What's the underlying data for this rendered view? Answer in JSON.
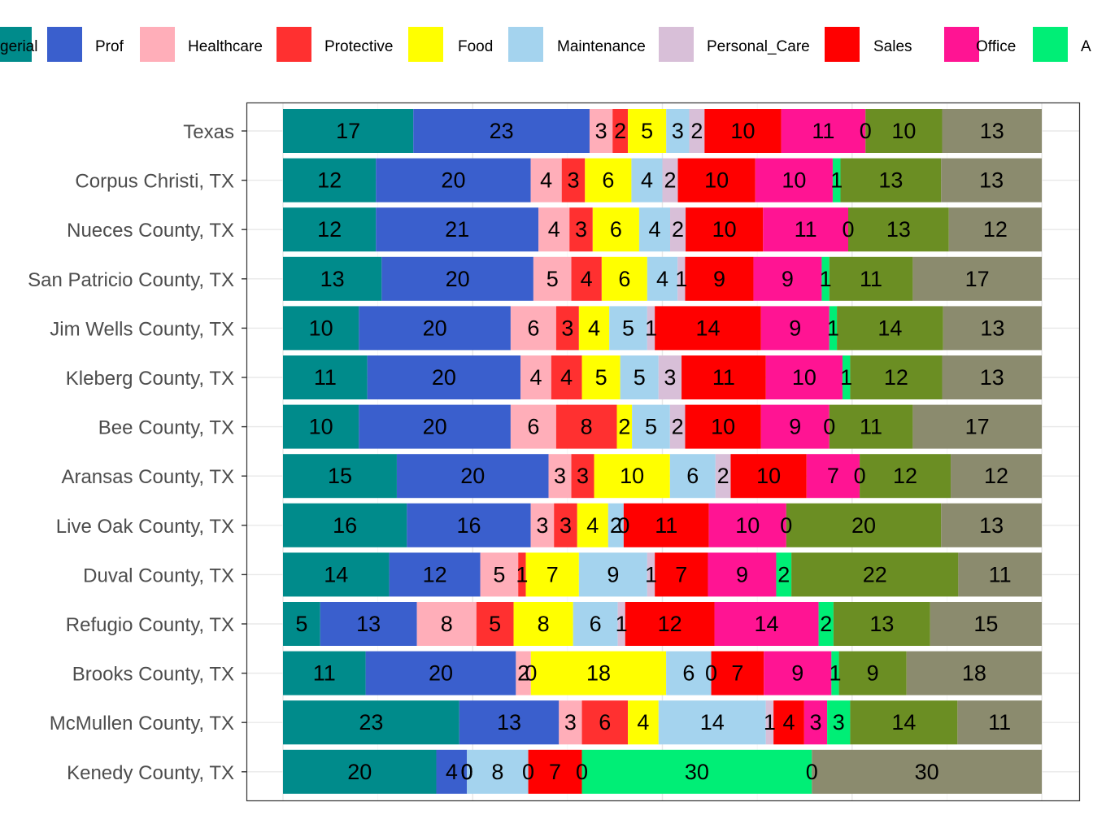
{
  "chart_data": {
    "type": "bar",
    "orientation": "horizontal",
    "stacked": true,
    "title": "",
    "xlabel": "",
    "ylabel": "",
    "grid": true,
    "legend_position": "top",
    "xlim": [
      0,
      100
    ],
    "categories": [
      "Texas",
      "Corpus Christi, TX",
      "Nueces County, TX",
      "San Patricio County, TX",
      "Jim Wells County, TX",
      "Kleberg County, TX",
      "Bee County, TX",
      "Aransas County, TX",
      "Live Oak County, TX",
      "Duval County, TX",
      "Refugio County, TX",
      "Brooks County, TX",
      "McMullen County, TX",
      "Kenedy County, TX"
    ],
    "legend_visible_labels": [
      "gerial",
      "Prof",
      "Healthcare",
      "Protective",
      "Food",
      "Maintenance",
      "Personal_Care",
      "Sales",
      "Office",
      "A"
    ],
    "series": [
      {
        "name": "gerial",
        "color": "#008B8B",
        "values": [
          17,
          12,
          12,
          13,
          10,
          11,
          10,
          15,
          16,
          14,
          5,
          11,
          23,
          20
        ]
      },
      {
        "name": "Prof",
        "color": "#3A5FCD",
        "values": [
          23,
          20,
          21,
          20,
          20,
          20,
          20,
          20,
          16,
          12,
          13,
          20,
          13,
          4
        ]
      },
      {
        "name": "Healthcare",
        "color": "#FFAEB9",
        "values": [
          3,
          4,
          4,
          5,
          6,
          4,
          6,
          3,
          3,
          5,
          8,
          2,
          3,
          0
        ]
      },
      {
        "name": "Protective",
        "color": "#FF3030",
        "values": [
          2,
          3,
          3,
          4,
          3,
          4,
          8,
          3,
          3,
          1,
          5,
          0,
          6,
          0
        ]
      },
      {
        "name": "Food",
        "color": "#FFFF00",
        "values": [
          5,
          6,
          6,
          6,
          4,
          5,
          2,
          10,
          4,
          7,
          8,
          18,
          4,
          0
        ]
      },
      {
        "name": "Maintenance",
        "color": "#A4D3EE",
        "values": [
          3,
          4,
          4,
          4,
          5,
          5,
          5,
          6,
          2,
          9,
          6,
          6,
          14,
          8
        ]
      },
      {
        "name": "Personal_Care",
        "color": "#D8BFD8",
        "values": [
          2,
          2,
          2,
          1,
          1,
          3,
          2,
          2,
          0,
          1,
          1,
          0,
          1,
          0
        ]
      },
      {
        "name": "Sales",
        "color": "#FF0000",
        "values": [
          10,
          10,
          10,
          9,
          14,
          11,
          10,
          10,
          11,
          7,
          12,
          7,
          4,
          7
        ]
      },
      {
        "name": "Office",
        "color": "#FF1493",
        "values": [
          11,
          10,
          11,
          9,
          9,
          10,
          9,
          7,
          10,
          9,
          14,
          9,
          3,
          0
        ]
      },
      {
        "name": "A",
        "color": "#00EE76",
        "values": [
          0,
          1,
          0,
          1,
          1,
          1,
          0,
          0,
          0,
          2,
          2,
          1,
          3,
          30
        ]
      },
      {
        "color": "#6B8E23",
        "values": [
          10,
          13,
          13,
          11,
          14,
          12,
          11,
          12,
          20,
          22,
          13,
          9,
          14,
          0
        ]
      },
      {
        "color": "#8B8B6E",
        "values": [
          13,
          13,
          12,
          17,
          13,
          13,
          17,
          12,
          13,
          11,
          15,
          18,
          11,
          30
        ]
      }
    ]
  }
}
